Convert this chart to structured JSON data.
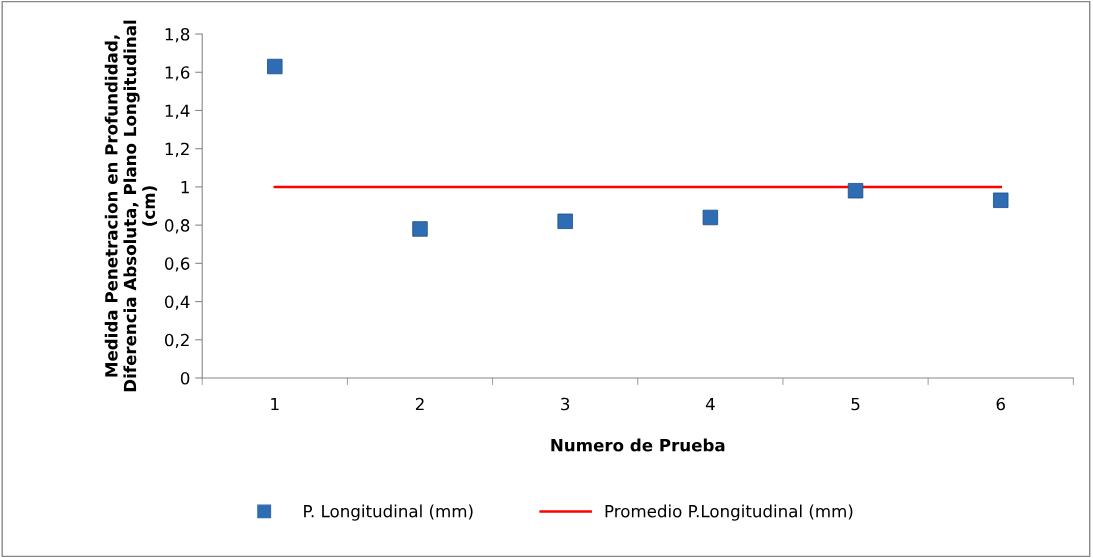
{
  "chart_data": {
    "type": "scatter",
    "xlabel": "Numero de Prueba",
    "ylabel": "Medida Penetracion en Profundidad, Diferencia Absoluta, Plano Longitudinal (cm)",
    "categories": [
      "1",
      "2",
      "3",
      "4",
      "5",
      "6"
    ],
    "series": [
      {
        "name": "P. Longitudinal (mm)",
        "color": "#2e6db3",
        "marker": "square",
        "values": [
          1.63,
          0.78,
          0.82,
          0.84,
          0.98,
          0.93
        ]
      },
      {
        "name": "Promedio P.Longitudinal (mm)",
        "type": "line",
        "color": "#ff0000",
        "marker": "none",
        "line_style": "solid",
        "values": [
          1.0,
          1.0,
          1.0,
          1.0,
          1.0,
          1.0
        ]
      }
    ],
    "ylim": [
      0,
      1.8
    ],
    "yticks": [
      0,
      {
        "value": 0.2,
        "label": "0,2"
      },
      {
        "value": 0.4,
        "label": "0,4"
      },
      {
        "value": 0.6,
        "label": "0,6"
      },
      {
        "value": 0.8,
        "label": "0,8"
      },
      1,
      {
        "value": 1.2,
        "label": "1,2"
      },
      {
        "value": 1.4,
        "label": "1,4"
      },
      {
        "value": 1.6,
        "label": "1,6"
      },
      {
        "value": 1.8,
        "label": "1,8"
      }
    ],
    "grid": false,
    "legend": "bottom"
  }
}
